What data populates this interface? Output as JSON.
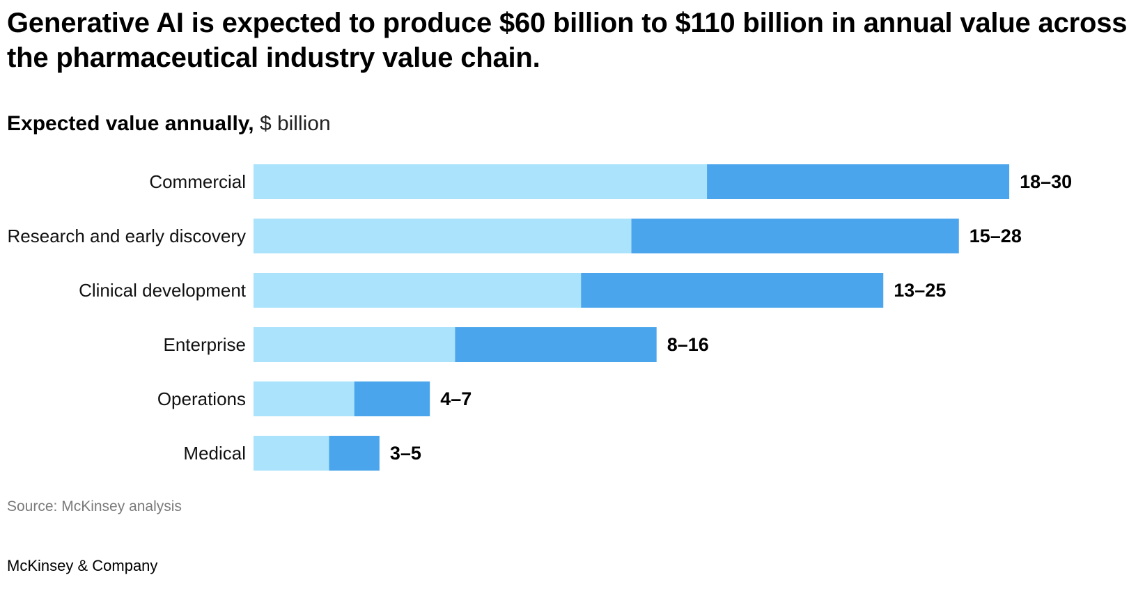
{
  "title": "Generative AI is expected to produce $60 billion to $110 billion in annual value across the pharmaceutical industry value chain.",
  "subtitle": {
    "strong": "Expected value annually,",
    "unit": "$ billion"
  },
  "chart_data": {
    "type": "bar",
    "orientation": "horizontal",
    "stacked": true,
    "categories": [
      "Commercial",
      "Research and early discovery",
      "Clinical development",
      "Enterprise",
      "Operations",
      "Medical"
    ],
    "low": [
      18,
      15,
      13,
      8,
      4,
      3
    ],
    "high": [
      30,
      28,
      25,
      16,
      7,
      5
    ],
    "range_labels": [
      "18–30",
      "15–28",
      "13–25",
      "8–16",
      "4–7",
      "3–5"
    ],
    "xlim": [
      0,
      30
    ],
    "grid": false,
    "colors": {
      "low": "#aae3fb",
      "high": "#4aa5ec"
    }
  },
  "source": "Source: McKinsey analysis",
  "brand": "McKinsey & Company"
}
